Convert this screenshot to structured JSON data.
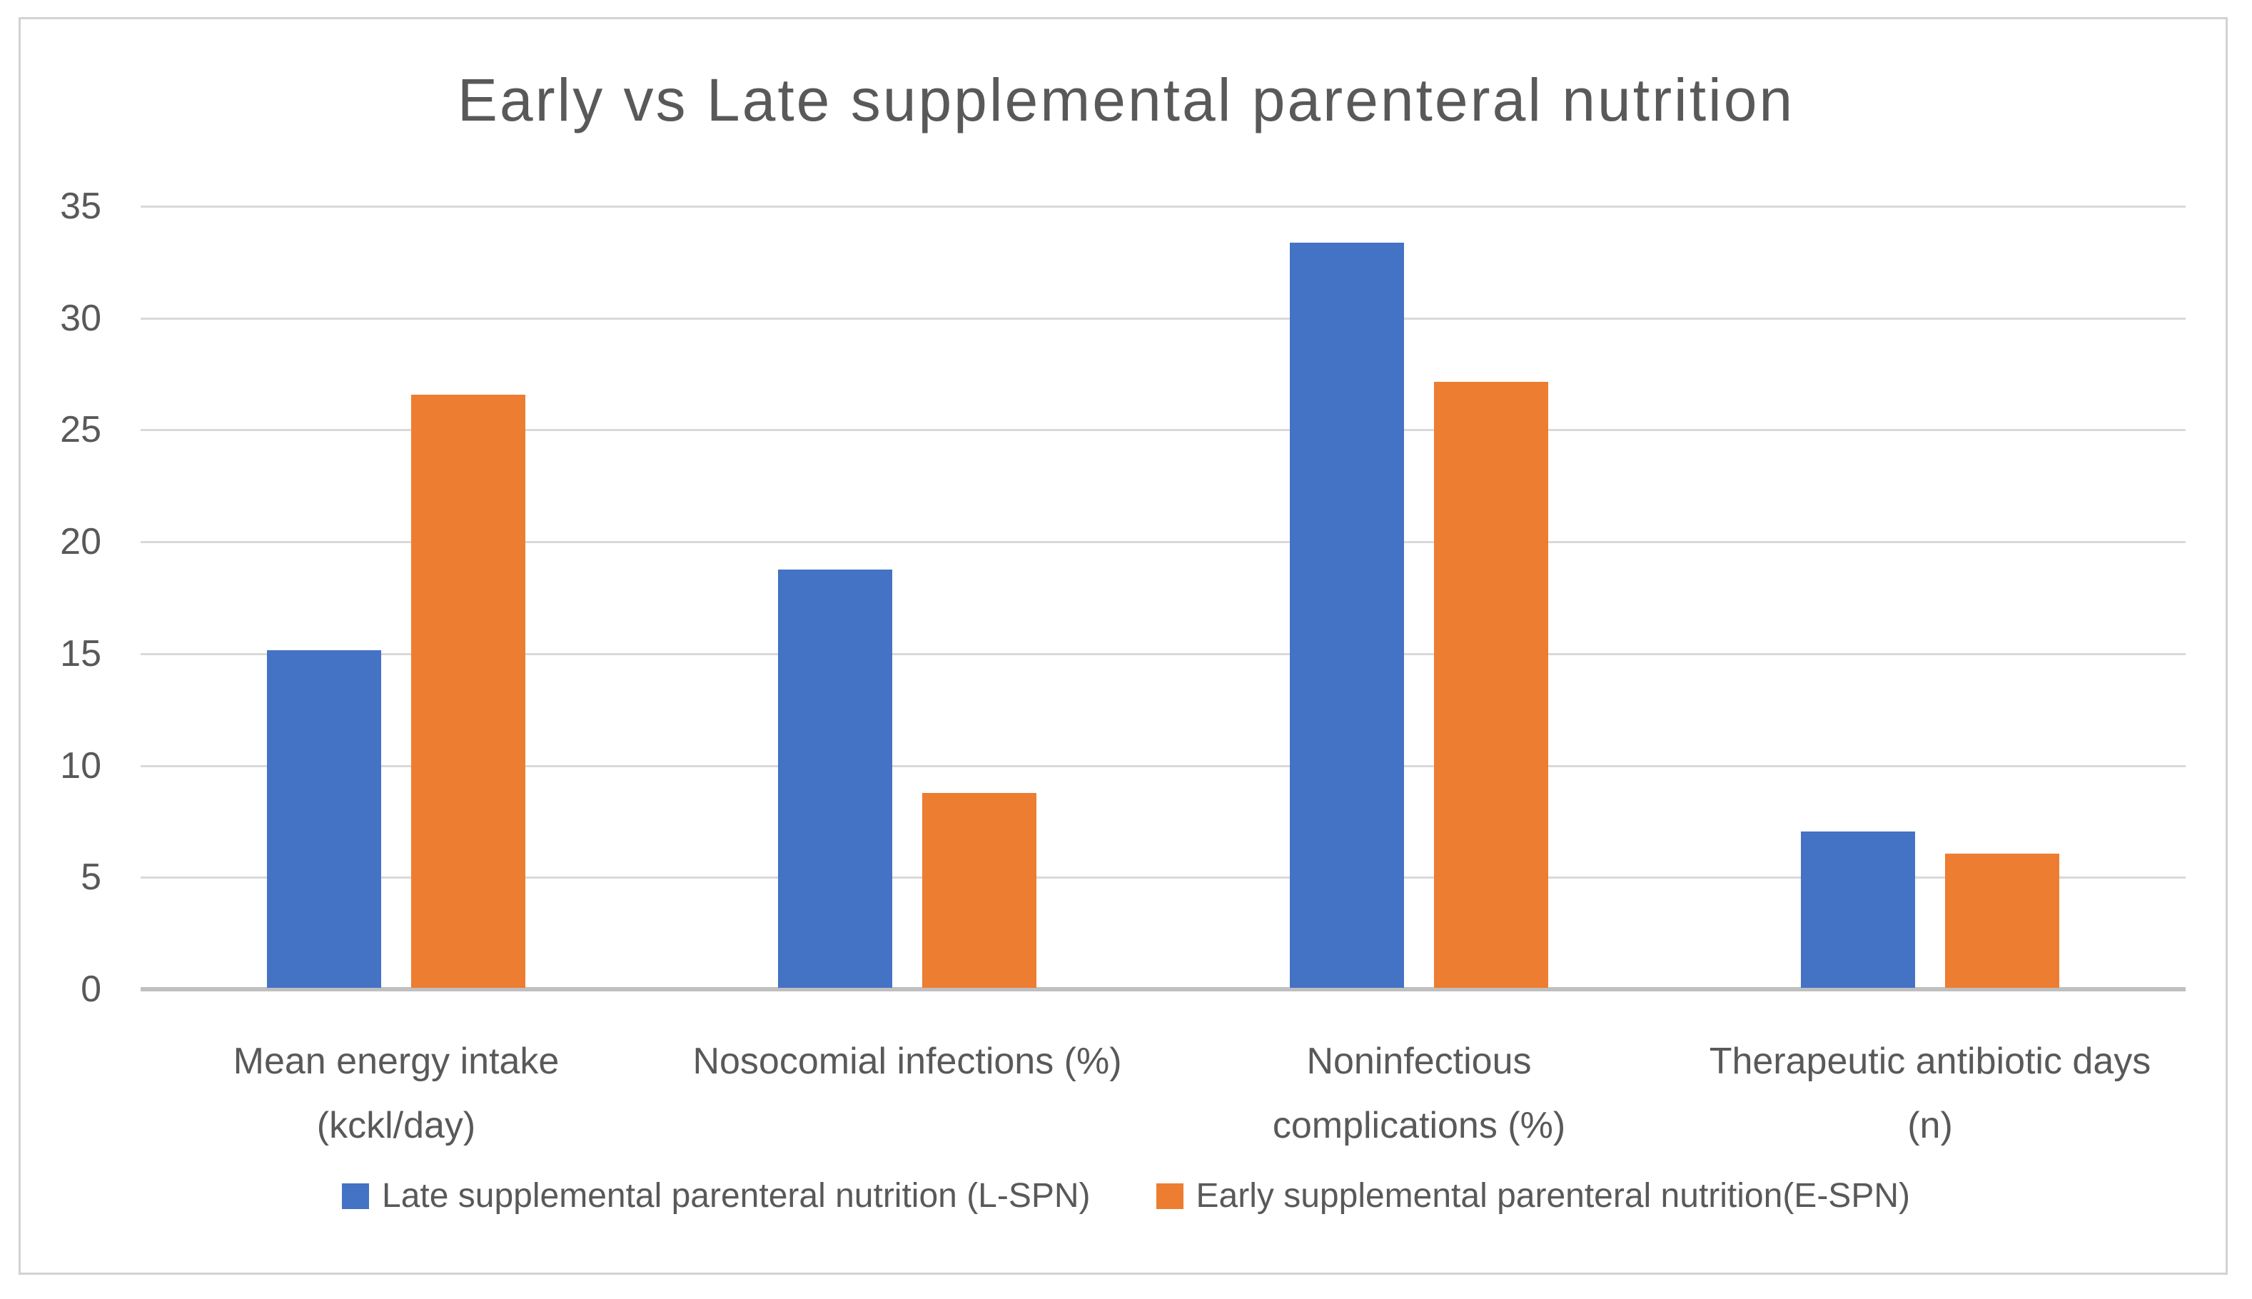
{
  "title": "Early vs Late supplemental parenteral nutrition",
  "colors": {
    "late_series": "#4472c4",
    "early_series": "#ed7d31",
    "gridline": "#d9d9d9",
    "axis_line": "#bfbfbf",
    "text": "#595959",
    "frame_border": "#d2d2d2"
  },
  "chart_data": {
    "type": "bar",
    "title": "Early vs Late supplemental parenteral nutrition",
    "categories": [
      "Mean energy intake (kckl/day)",
      "Nosocomial infections (%)",
      "Noninfectious complications (%)",
      "Therapeutic antibiotic days (n)"
    ],
    "category_label_lines": [
      [
        "Mean energy intake",
        "(kckl/day)"
      ],
      [
        "Nosocomial infections (%)"
      ],
      [
        "Noninfectious",
        "complications (%)"
      ],
      [
        "Therapeutic antibiotic days",
        "(n)"
      ]
    ],
    "series": [
      {
        "name": "Late supplemental parenteral nutrition (L-SPN)",
        "color": "#4472c4",
        "values": [
          15.1,
          18.7,
          33.3,
          7
        ]
      },
      {
        "name": "Early supplemental parenteral nutrition(E-SPN)",
        "color": "#ed7d31",
        "values": [
          26.5,
          8.7,
          27.1,
          6
        ]
      }
    ],
    "xlabel": "",
    "ylabel": "",
    "ylim": [
      0,
      35
    ],
    "y_tick_step": 5,
    "y_tick_labels": [
      "35",
      "30",
      "25",
      "20",
      "15",
      "10",
      "5",
      "0"
    ],
    "grid": true,
    "legend_position": "bottom"
  }
}
